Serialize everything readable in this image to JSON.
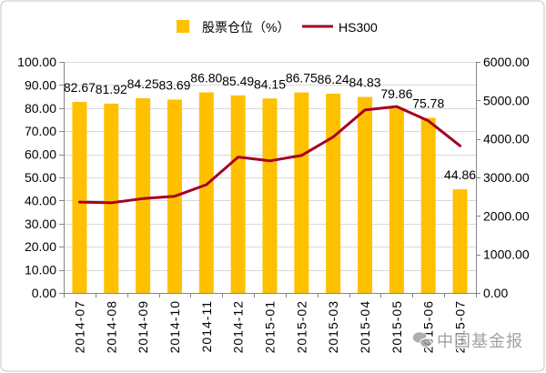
{
  "chart_data": {
    "type": "bar",
    "categories": [
      "2014-07",
      "2014-08",
      "2014-09",
      "2014-10",
      "2014-11",
      "2014-12",
      "2015-01",
      "2015-02",
      "2015-03",
      "2015-04",
      "2015-05",
      "2015-06",
      "2015-07"
    ],
    "series": [
      {
        "name": "股票仓位（%）",
        "type": "bar",
        "axis": "left",
        "color": "#FFC000",
        "data_labels": true,
        "values": [
          82.67,
          81.92,
          84.25,
          83.69,
          86.8,
          85.49,
          84.15,
          86.75,
          86.24,
          84.83,
          79.86,
          75.78,
          44.86
        ]
      },
      {
        "name": "HS300",
        "type": "line",
        "axis": "right",
        "color": "#A50021",
        "data_labels": false,
        "values": [
          2360,
          2340,
          2450,
          2510,
          2810,
          3530,
          3430,
          3570,
          4050,
          4750,
          4840,
          4470,
          3820
        ]
      }
    ],
    "y_left": {
      "range": [
        0,
        100
      ],
      "ticks": [
        "0.00",
        "10.00",
        "20.00",
        "30.00",
        "40.00",
        "50.00",
        "60.00",
        "70.00",
        "80.00",
        "90.00",
        "100.00"
      ]
    },
    "y_right": {
      "range": [
        0,
        6000
      ],
      "ticks": [
        "0.00",
        "1000.00",
        "2000.00",
        "3000.00",
        "4000.00",
        "5000.00",
        "6000.00"
      ]
    },
    "grid": true,
    "legend": "top"
  },
  "watermark": {
    "text": "中国基金报",
    "icon": "wechat-icon"
  }
}
